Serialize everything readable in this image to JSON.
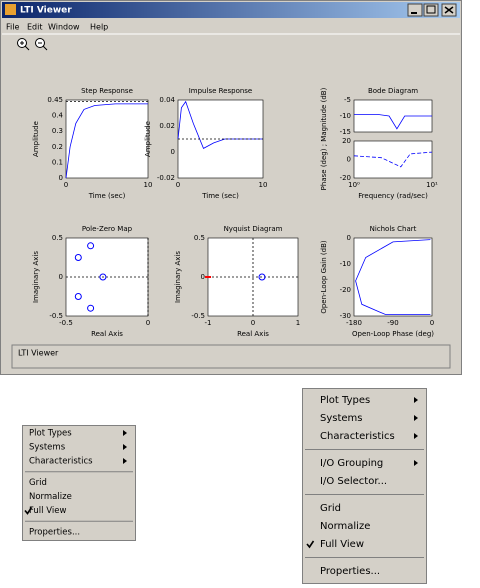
{
  "window": {
    "title": "LTI Viewer",
    "menu": [
      "File",
      "Edit",
      "Window",
      "Help"
    ],
    "status": "LTI Viewer"
  },
  "plots": [
    {
      "title": "Step Response",
      "ylabel": "Amplitude",
      "xlabel": "Time (sec)",
      "xticks": [
        "0",
        "10"
      ],
      "panels": [
        {
          "yticks": [
            "0.45",
            "0.4",
            "0.3",
            "0.2",
            "0.1",
            "0"
          ]
        }
      ]
    },
    {
      "title": "Impulse Response",
      "ylabel": "Amplitude",
      "xlabel": "Time (sec)",
      "xticks": [
        "0",
        "10"
      ],
      "panels": [
        {
          "yticks": [
            "0.04",
            "0.02",
            "0",
            "-0.02"
          ]
        }
      ]
    },
    {
      "title": "Bode Diagram",
      "ylabel": "Phase (deg) ; Magnitude (dB)",
      "xlabel": "Frequency (rad/sec)",
      "xticks": [
        "10⁰",
        "10¹"
      ],
      "panels": [
        {
          "yticks": [
            "-5",
            "-10",
            "-15"
          ]
        },
        {
          "yticks": [
            "20",
            "0",
            "-20"
          ]
        }
      ]
    },
    {
      "title": "Pole-Zero Map",
      "ylabel": "Imaginary Axis",
      "xlabel": "Real Axis",
      "xticks": [
        "-0.5",
        "0"
      ],
      "panels": [
        {
          "yticks": [
            "0.5",
            "0",
            "-0.5"
          ]
        }
      ]
    },
    {
      "title": "Nyquist Diagram",
      "ylabel": "Imaginary Axis",
      "xlabel": "Real Axis",
      "xticks": [
        "-1",
        "0",
        "1"
      ],
      "panels": [
        {
          "yticks": [
            "0.5",
            "0",
            "-0.5"
          ]
        }
      ]
    },
    {
      "title": "Nichols Chart",
      "ylabel": "Open-Loop Gain (dB)",
      "xlabel": "Open-Loop Phase (deg)",
      "xticks": [
        "-180",
        "-90",
        "0"
      ],
      "panels": [
        {
          "yticks": [
            "0",
            "-10",
            "-20",
            "-30"
          ]
        }
      ]
    }
  ],
  "menus": [
    {
      "groups": [
        [
          {
            "label": "Plot Types",
            "submenu": true
          },
          {
            "label": "Systems",
            "submenu": true
          },
          {
            "label": "Characteristics",
            "submenu": true
          }
        ],
        [
          {
            "label": "Grid"
          },
          {
            "label": "Normalize"
          },
          {
            "label": "Full View",
            "checked": true
          }
        ],
        [
          {
            "label": "Properties..."
          }
        ]
      ]
    },
    {
      "groups": [
        [
          {
            "label": "Plot Types",
            "submenu": true
          },
          {
            "label": "Systems",
            "submenu": true
          },
          {
            "label": "Characteristics",
            "submenu": true
          }
        ],
        [
          {
            "label": "I/O Grouping",
            "submenu": true
          },
          {
            "label": "I/O Selector..."
          }
        ],
        [
          {
            "label": "Grid"
          },
          {
            "label": "Normalize"
          },
          {
            "label": "Full View",
            "checked": true
          }
        ],
        [
          {
            "label": "Properties..."
          }
        ]
      ]
    }
  ]
}
